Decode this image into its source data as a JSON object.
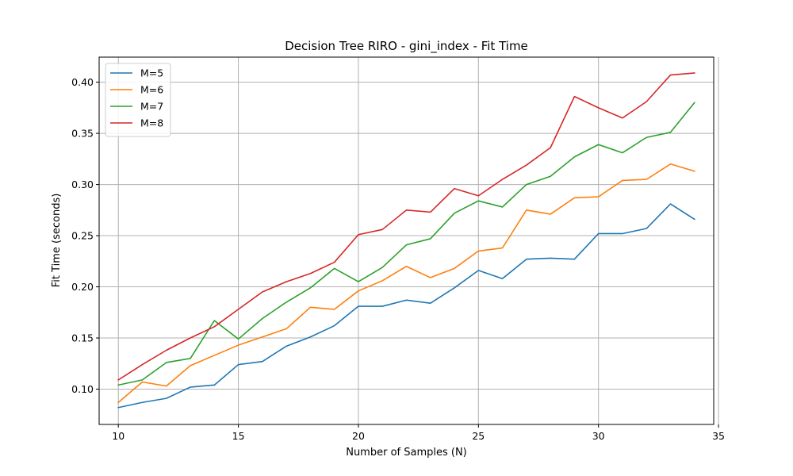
{
  "chart_data": {
    "type": "line",
    "title": "Decision Tree RIRO - gini_index - Fit Time",
    "xlabel": "Number of Samples (N)",
    "ylabel": "Fit Time (seconds)",
    "xlim": [
      9.2,
      34.8
    ],
    "ylim": [
      0.0655,
      0.4245
    ],
    "xticks": [
      10,
      15,
      20,
      25,
      30,
      35
    ],
    "yticks": [
      0.1,
      0.15,
      0.2,
      0.25,
      0.3,
      0.35,
      0.4
    ],
    "grid": true,
    "legend_position": "top-left",
    "x": [
      10,
      11,
      12,
      13,
      14,
      15,
      16,
      17,
      18,
      19,
      20,
      21,
      22,
      23,
      24,
      25,
      26,
      27,
      28,
      29,
      30,
      31,
      32,
      33,
      34
    ],
    "series": [
      {
        "name": "M=5",
        "color": "#1f77b4",
        "values": [
          0.082,
          0.087,
          0.091,
          0.102,
          0.104,
          0.124,
          0.127,
          0.142,
          0.151,
          0.162,
          0.181,
          0.181,
          0.187,
          0.184,
          0.199,
          0.216,
          0.208,
          0.227,
          0.228,
          0.227,
          0.252,
          0.252,
          0.257,
          0.281,
          0.266
        ]
      },
      {
        "name": "M=6",
        "color": "#ff7f0e",
        "values": [
          0.087,
          0.107,
          0.103,
          0.123,
          0.133,
          0.143,
          0.151,
          0.159,
          0.18,
          0.178,
          0.196,
          0.206,
          0.22,
          0.209,
          0.218,
          0.235,
          0.238,
          0.275,
          0.271,
          0.287,
          0.288,
          0.304,
          0.305,
          0.32,
          0.313
        ]
      },
      {
        "name": "M=7",
        "color": "#2ca02c",
        "values": [
          0.104,
          0.109,
          0.126,
          0.13,
          0.167,
          0.149,
          0.169,
          0.185,
          0.199,
          0.218,
          0.205,
          0.219,
          0.241,
          0.247,
          0.272,
          0.284,
          0.278,
          0.3,
          0.308,
          0.327,
          0.339,
          0.331,
          0.346,
          0.351,
          0.38
        ]
      },
      {
        "name": "M=8",
        "color": "#d62728",
        "values": [
          0.109,
          0.124,
          0.138,
          0.15,
          0.161,
          0.178,
          0.195,
          0.205,
          0.213,
          0.224,
          0.251,
          0.256,
          0.275,
          0.273,
          0.296,
          0.289,
          0.305,
          0.319,
          0.336,
          0.386,
          0.375,
          0.365,
          0.381,
          0.407,
          0.409
        ]
      }
    ]
  }
}
